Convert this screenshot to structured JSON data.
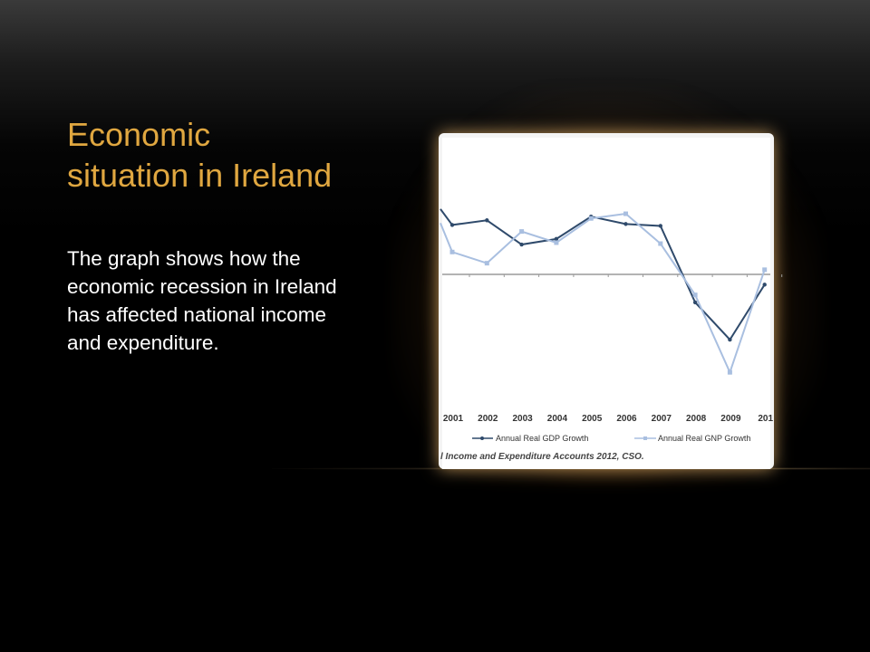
{
  "slide": {
    "title": "Economic situation in Ireland",
    "body": "The graph shows how the economic recession in Ireland has affected national income and expenditure."
  },
  "colors": {
    "title": "#e0a740",
    "body_text": "#ffffff",
    "gdp_series": "#2f4a6b",
    "gnp_series": "#a9bfe0",
    "zero_line": "#9a9a9a",
    "glow": "#f0b060"
  },
  "chart_data": {
    "type": "line",
    "categories": [
      "2001",
      "2002",
      "2003",
      "2004",
      "2005",
      "2006",
      "2007",
      "2008",
      "2009",
      "201"
    ],
    "series": [
      {
        "name": "Annual Real GDP Growth",
        "values": [
          5.3,
          5.8,
          3.2,
          3.8,
          6.2,
          5.4,
          5.2,
          -3.0,
          -7.0,
          -1.1
        ]
      },
      {
        "name": "Annual Real GNP Growth",
        "values": [
          2.4,
          1.2,
          4.6,
          3.4,
          6.0,
          6.5,
          3.3,
          -2.2,
          -10.5,
          0.5
        ]
      }
    ],
    "first_point": {
      "GDP": 7.0,
      "GNP": 5.5
    },
    "ylim": [
      -12,
      9
    ],
    "grid": false,
    "legend_position": "bottom",
    "source": "l Income and Expenditure Accounts 2012, CSO."
  }
}
